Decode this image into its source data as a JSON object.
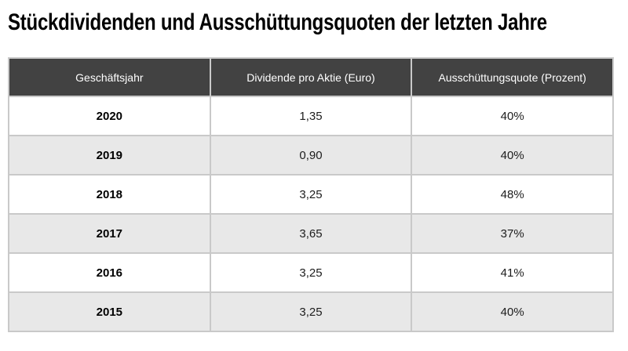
{
  "title": "Stückdividenden und Ausschüttungsquoten der letzten Jahre",
  "chart_data": {
    "type": "table",
    "title": "Stückdividenden und Ausschüttungsquoten der letzten Jahre",
    "columns": [
      "Geschäftsjahr",
      "Dividende pro Aktie (Euro)",
      "Ausschüttungsquote (Prozent)"
    ],
    "rows": [
      [
        "2020",
        "1,35",
        "40%"
      ],
      [
        "2019",
        "0,90",
        "40%"
      ],
      [
        "2018",
        "3,25",
        "48%"
      ],
      [
        "2017",
        "3,65",
        "37%"
      ],
      [
        "2016",
        "3,25",
        "41%"
      ],
      [
        "2015",
        "3,25",
        "40%"
      ]
    ],
    "years": [
      2020,
      2019,
      2018,
      2017,
      2016,
      2015
    ],
    "dividend_per_share_eur": [
      1.35,
      0.9,
      3.25,
      3.65,
      3.25,
      3.25
    ],
    "payout_ratio_percent": [
      40,
      40,
      48,
      37,
      41,
      40
    ]
  },
  "colors": {
    "header_bg": "#424242",
    "header_text": "#ffffff",
    "row_alt_bg": "#e8e8e8",
    "row_bg": "#ffffff",
    "border": "#c9c9c9",
    "text": "#1d1d1d",
    "title": "#000000"
  }
}
